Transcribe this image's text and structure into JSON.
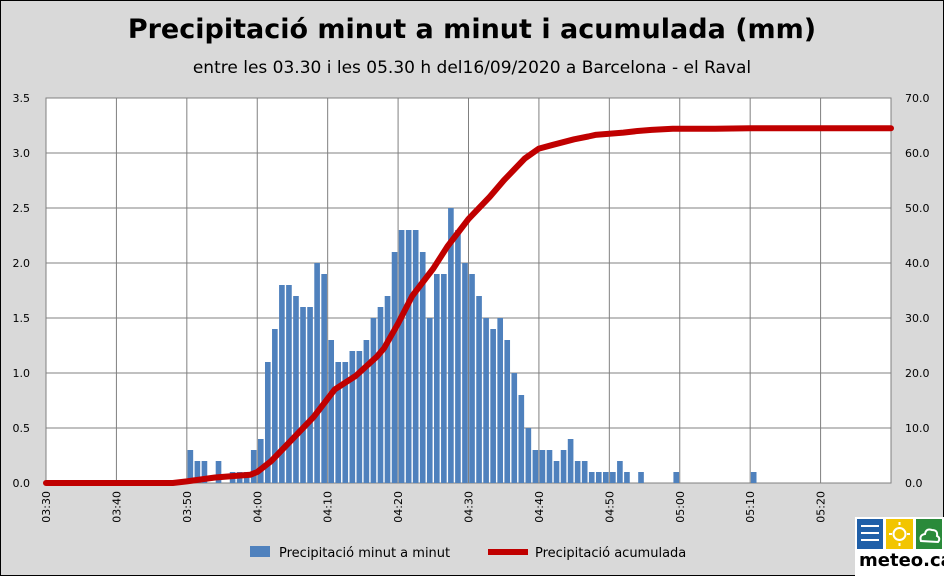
{
  "chart_data": {
    "type": "bar+line",
    "title": "Precipitació minut a minut i acumulada (mm)",
    "subtitle": "entre les 03.30 i les 05.30 h del16/09/2020  a Barcelona - el Raval",
    "x_tick_labels": [
      "03:30",
      "03:40",
      "03:50",
      "04:00",
      "04:10",
      "04:20",
      "04:30",
      "04:40",
      "04:50",
      "05:00",
      "05:10",
      "05:20"
    ],
    "y_left_ticks": [
      "0.0",
      "0.5",
      "1.0",
      "1.5",
      "2.0",
      "2.5",
      "3.0",
      "3.5"
    ],
    "y_right_ticks": [
      "0.0",
      "10.0",
      "20.0",
      "30.0",
      "40.0",
      "50.0",
      "60.0",
      "70.0"
    ],
    "y_left_lim": [
      0,
      3.5
    ],
    "y_right_lim": [
      0,
      70
    ],
    "x_minutes_range": [
      0,
      120
    ],
    "grid": true,
    "legend_position": "bottom",
    "series": [
      {
        "name": "Precipitació minut a minut",
        "kind": "bar",
        "axis": "left",
        "color": "#4f81bd",
        "points": [
          [
            20,
            0.3
          ],
          [
            21,
            0.2
          ],
          [
            22,
            0.2
          ],
          [
            24,
            0.2
          ],
          [
            26,
            0.1
          ],
          [
            27,
            0.1
          ],
          [
            28,
            0.1
          ],
          [
            29,
            0.3
          ],
          [
            30,
            0.4
          ],
          [
            31,
            1.1
          ],
          [
            32,
            1.4
          ],
          [
            33,
            1.8
          ],
          [
            34,
            1.8
          ],
          [
            35,
            1.7
          ],
          [
            36,
            1.6
          ],
          [
            37,
            1.6
          ],
          [
            38,
            2.0
          ],
          [
            39,
            1.9
          ],
          [
            40,
            1.3
          ],
          [
            41,
            1.1
          ],
          [
            42,
            1.1
          ],
          [
            43,
            1.2
          ],
          [
            44,
            1.2
          ],
          [
            45,
            1.3
          ],
          [
            46,
            1.5
          ],
          [
            47,
            1.6
          ],
          [
            48,
            1.7
          ],
          [
            49,
            2.1
          ],
          [
            50,
            2.3
          ],
          [
            51,
            2.3
          ],
          [
            52,
            2.3
          ],
          [
            53,
            2.1
          ],
          [
            54,
            1.5
          ],
          [
            55,
            1.9
          ],
          [
            56,
            1.9
          ],
          [
            57,
            2.5
          ],
          [
            58,
            2.3
          ],
          [
            59,
            2.0
          ],
          [
            60,
            1.9
          ],
          [
            61,
            1.7
          ],
          [
            62,
            1.5
          ],
          [
            63,
            1.4
          ],
          [
            64,
            1.5
          ],
          [
            65,
            1.3
          ],
          [
            66,
            1.0
          ],
          [
            67,
            0.8
          ],
          [
            68,
            0.5
          ],
          [
            69,
            0.3
          ],
          [
            70,
            0.3
          ],
          [
            71,
            0.3
          ],
          [
            72,
            0.2
          ],
          [
            73,
            0.3
          ],
          [
            74,
            0.4
          ],
          [
            75,
            0.2
          ],
          [
            76,
            0.2
          ],
          [
            77,
            0.1
          ],
          [
            78,
            0.1
          ],
          [
            79,
            0.1
          ],
          [
            80,
            0.1
          ],
          [
            81,
            0.2
          ],
          [
            82,
            0.1
          ],
          [
            84,
            0.1
          ],
          [
            89,
            0.1
          ],
          [
            100,
            0.1
          ]
        ]
      },
      {
        "name": "Precipitació acumulada",
        "kind": "line",
        "axis": "right",
        "color": "#c00000",
        "points": [
          [
            0,
            0
          ],
          [
            18,
            0
          ],
          [
            20,
            0.3
          ],
          [
            24,
            1.0
          ],
          [
            29,
            1.5
          ],
          [
            30,
            2.0
          ],
          [
            32,
            4.0
          ],
          [
            35,
            8.0
          ],
          [
            38,
            12.0
          ],
          [
            41,
            17.0
          ],
          [
            44,
            19.5
          ],
          [
            47,
            23.0
          ],
          [
            48,
            24.5
          ],
          [
            50,
            29.0
          ],
          [
            52,
            34.0
          ],
          [
            55,
            39.0
          ],
          [
            57,
            43.0
          ],
          [
            60,
            48.0
          ],
          [
            63,
            52.0
          ],
          [
            65,
            55.0
          ],
          [
            68,
            59.0
          ],
          [
            70,
            60.8
          ],
          [
            72,
            61.5
          ],
          [
            75,
            62.5
          ],
          [
            77,
            63.0
          ],
          [
            78,
            63.3
          ],
          [
            82,
            63.7
          ],
          [
            84,
            64.0
          ],
          [
            86,
            64.2
          ],
          [
            89,
            64.4
          ],
          [
            95,
            64.4
          ],
          [
            100,
            64.5
          ],
          [
            120,
            64.5
          ]
        ]
      }
    ]
  },
  "legend": {
    "bar_label": "Precipitació minut a minut",
    "line_label": "Precipitació acumulada"
  },
  "logo": {
    "text": "meteo.cat",
    "colors": {
      "blue": "#1f5fa8",
      "yellow": "#f2c500",
      "green": "#2a8a3a"
    }
  }
}
